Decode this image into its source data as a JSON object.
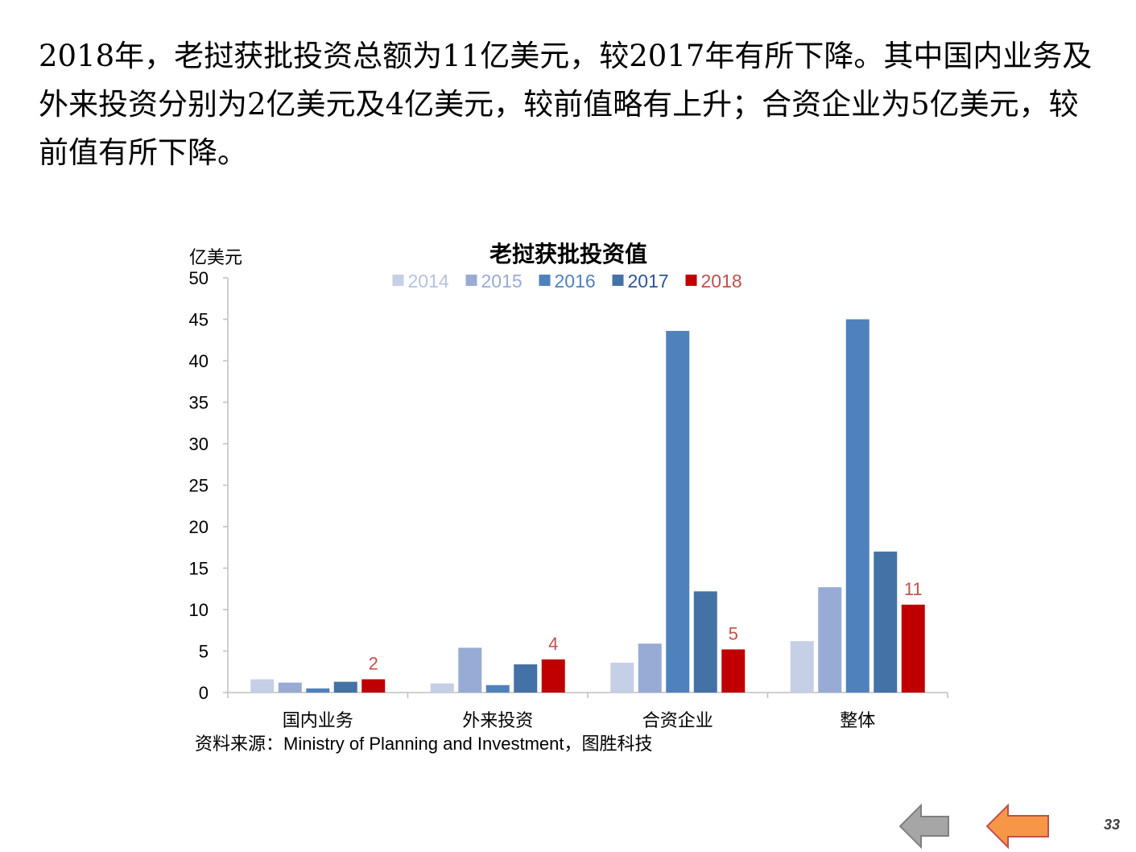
{
  "intro": {
    "text": "2018年，老挝获批投资总额为11亿美元，较2017年有所下降。其中国内业务及外来投资分别为2亿美元及4亿美元，较前值略有上升；合资企业为5亿美元，较前值有所下降。"
  },
  "chart_data": {
    "type": "bar",
    "title": "老挝获批投资值",
    "ylabel": "亿美元",
    "xlabel": "",
    "ylim": [
      0,
      50
    ],
    "yticks": [
      0,
      5,
      10,
      15,
      20,
      25,
      30,
      35,
      40,
      45,
      50
    ],
    "grid": false,
    "legend": "top",
    "categories": [
      "国内业务",
      "外来投资",
      "合资企业",
      "整体"
    ],
    "series": [
      {
        "name": "2014",
        "color": "#c5cfe6",
        "values": [
          1.6,
          1.1,
          3.6,
          6.2
        ]
      },
      {
        "name": "2015",
        "color": "#98abd4",
        "values": [
          1.2,
          5.4,
          5.9,
          12.7
        ]
      },
      {
        "name": "2016",
        "color": "#4f81bd",
        "values": [
          0.5,
          0.9,
          43.6,
          45.0
        ]
      },
      {
        "name": "2017",
        "color": "#4472a6",
        "values": [
          1.3,
          3.4,
          12.2,
          17.0
        ]
      },
      {
        "name": "2018",
        "color": "#c00000",
        "values": [
          1.6,
          4.0,
          5.2,
          10.6
        ]
      }
    ],
    "data_labels": {
      "series": "2018",
      "color": "#c0504d",
      "labels": [
        "2",
        "4",
        "5",
        "11"
      ]
    },
    "legend_text_colors": {
      "2014": "#b4c2de",
      "2015": "#98abd4",
      "2016": "#4f81bd",
      "2017": "#2f5496",
      "2018": "#c0504d"
    }
  },
  "source": {
    "text": "资料来源：Ministry of Planning and Investment，图胜科技"
  },
  "nav": {
    "next_icon": "arrow-right-icon",
    "prev_icon": "arrow-left-icon",
    "next_color": "#a6a6a6",
    "prev_color": "#f79646"
  },
  "page": {
    "number": "33"
  }
}
